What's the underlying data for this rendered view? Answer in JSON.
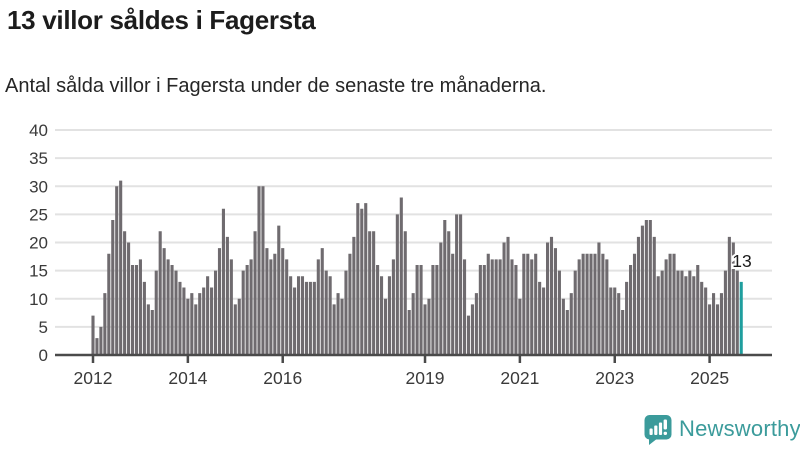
{
  "header": {
    "title": "13 villor såldes i Fagersta",
    "subtitle": "Antal sålda villor i Fagersta under de senaste tre månaderna."
  },
  "chart_data": {
    "type": "bar",
    "title": "13 villor såldes i Fagersta",
    "x_start": "2012-01",
    "x_end": "2025-09",
    "frequency": "monthly",
    "values": [
      7,
      3,
      5,
      11,
      18,
      24,
      30,
      31,
      22,
      20,
      16,
      16,
      17,
      13,
      9,
      8,
      15,
      22,
      19,
      17,
      16,
      15,
      13,
      12,
      10,
      11,
      9,
      11,
      12,
      14,
      12,
      15,
      19,
      26,
      21,
      17,
      9,
      10,
      15,
      16,
      17,
      22,
      30,
      30,
      19,
      17,
      18,
      23,
      19,
      17,
      14,
      12,
      14,
      14,
      13,
      13,
      13,
      17,
      19,
      15,
      14,
      9,
      11,
      10,
      15,
      18,
      21,
      27,
      26,
      27,
      22,
      22,
      16,
      14,
      10,
      14,
      17,
      25,
      28,
      22,
      8,
      11,
      16,
      16,
      9,
      10,
      16,
      16,
      20,
      24,
      22,
      18,
      25,
      25,
      17,
      7,
      9,
      11,
      16,
      16,
      18,
      17,
      17,
      17,
      20,
      21,
      17,
      16,
      10,
      18,
      18,
      17,
      18,
      13,
      12,
      20,
      21,
      19,
      15,
      10,
      8,
      11,
      15,
      17,
      18,
      18,
      18,
      18,
      20,
      18,
      17,
      12,
      12,
      11,
      8,
      13,
      16,
      18,
      21,
      23,
      24,
      24,
      21,
      14,
      15,
      17,
      18,
      18,
      15,
      15,
      14,
      15,
      14,
      16,
      13,
      12,
      9,
      11,
      9,
      11,
      15,
      21,
      20,
      15,
      13
    ],
    "highlight_index": 164,
    "highlight_label": "13",
    "ylim": [
      0,
      40
    ],
    "y_ticks": [
      0,
      5,
      10,
      15,
      20,
      25,
      30,
      35,
      40
    ],
    "x_ticks": [
      {
        "index": 0,
        "label": "2012"
      },
      {
        "index": 24,
        "label": "2014"
      },
      {
        "index": 48,
        "label": "2016"
      },
      {
        "index": 84,
        "label": "2019"
      },
      {
        "index": 108,
        "label": "2021"
      },
      {
        "index": 132,
        "label": "2023"
      },
      {
        "index": 156,
        "label": "2025"
      }
    ],
    "grid": "horizontal",
    "legend": "none",
    "colors": {
      "bar": "#6f6b6f",
      "highlight": "#1f9e9e",
      "gridline": "#e2e2e2",
      "axis": "#4a4a4a",
      "tick_label": "#3a3a3a",
      "annotation": "#1a1a1a"
    }
  },
  "footer": {
    "brand": "Newsworthy",
    "brand_color": "#3b9b9b"
  }
}
